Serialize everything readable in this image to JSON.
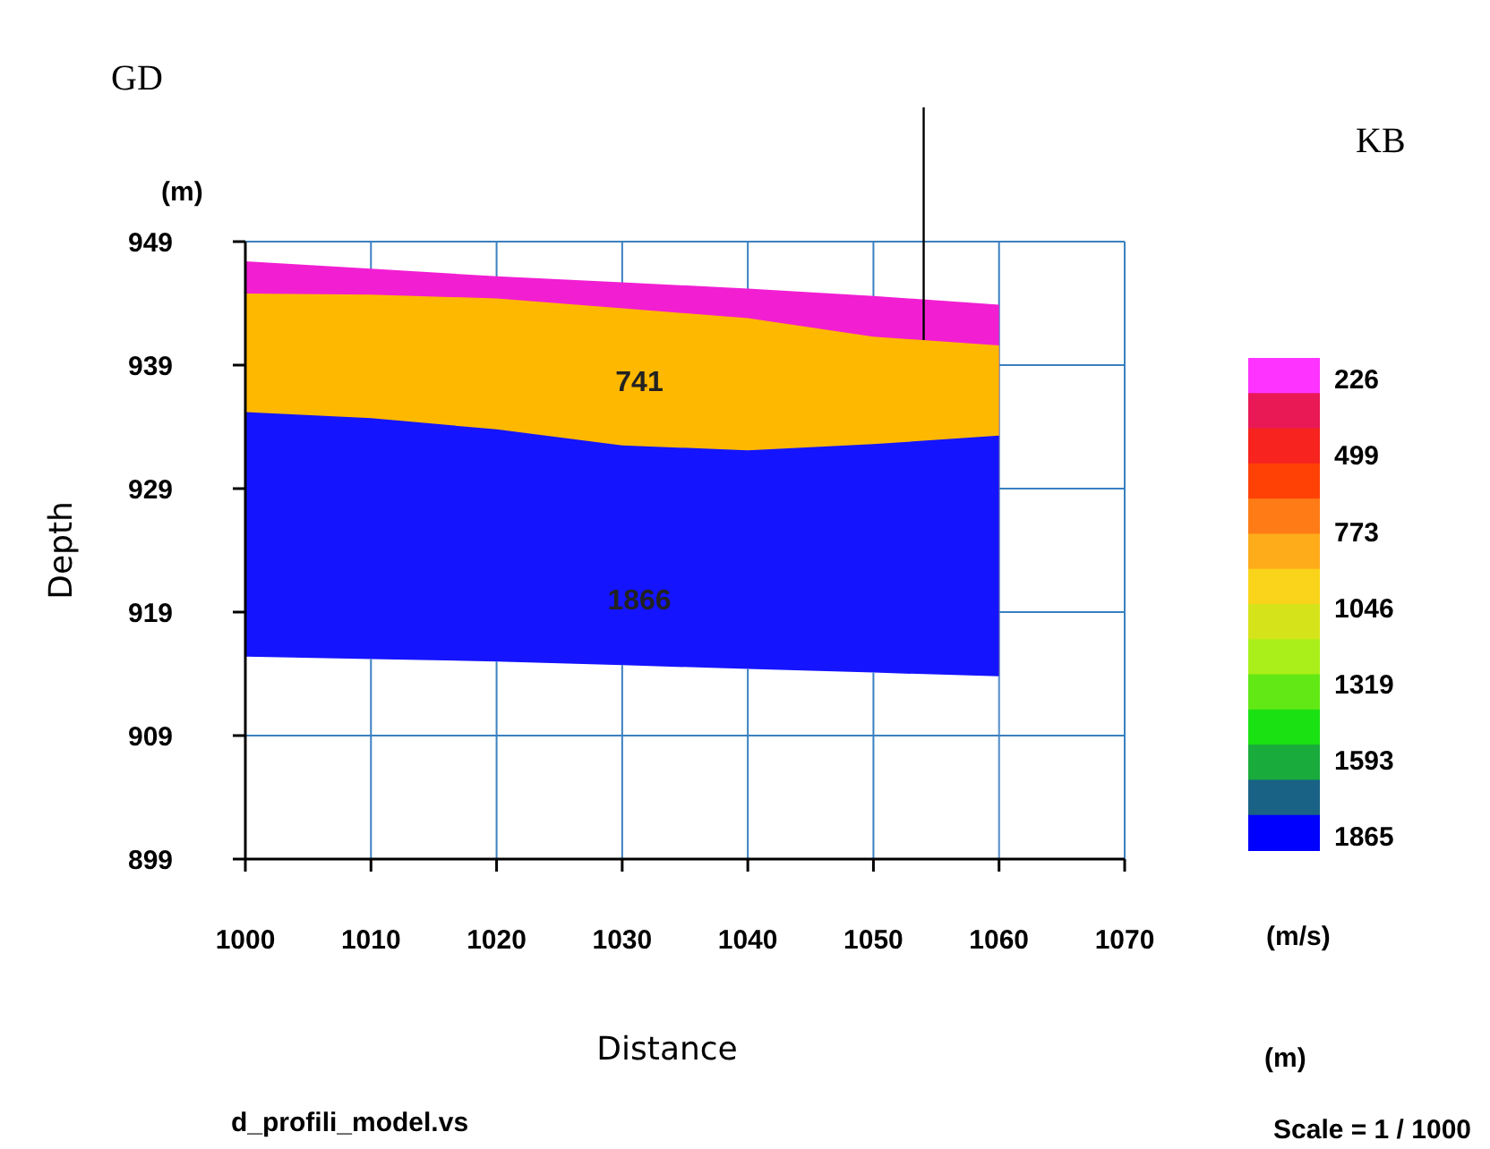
{
  "chart_data": {
    "type": "area",
    "xlabel": "Distance",
    "ylabel": "Depth",
    "x": [
      1000,
      1010,
      1020,
      1030,
      1040,
      1050,
      1060
    ],
    "series": [
      {
        "color": "#f21ed2",
        "values": [
          947.4,
          946.8,
          946.2,
          945.7,
          945.2,
          944.6,
          943.9
        ]
      },
      {
        "color": "#ffb800",
        "values": [
          944.8,
          944.7,
          944.4,
          943.6,
          942.8,
          941.3,
          940.6
        ]
      },
      {
        "color": "#1414ff",
        "values": [
          935.2,
          934.7,
          933.8,
          932.5,
          932.1,
          932.6,
          933.3
        ]
      },
      {
        "color": "#ffffff",
        "values": [
          915.4,
          915.2,
          915.0,
          914.7,
          914.4,
          914.1,
          913.8
        ]
      }
    ],
    "xlim": [
      1000,
      1070
    ],
    "xticks": [
      1000,
      1010,
      1020,
      1030,
      1040,
      1050,
      1060,
      1070
    ],
    "ylim": [
      899,
      949
    ],
    "yticks": [
      899,
      909,
      919,
      929,
      939,
      949
    ],
    "grid": true,
    "ref_lines": [
      {
        "axis": "x",
        "value": 1054,
        "color": "#000000"
      }
    ],
    "clabel": "(m/s)",
    "clim": [
      149,
      1916
    ],
    "cticks": [
      226,
      499,
      773,
      1046,
      1319,
      1593,
      1865
    ],
    "annotations": [
      "GD",
      "KB",
      "(m)",
      "(m)",
      "Scale = 1 / 1000",
      "d_profili_model.vs",
      "741",
      "1866"
    ]
  }
}
